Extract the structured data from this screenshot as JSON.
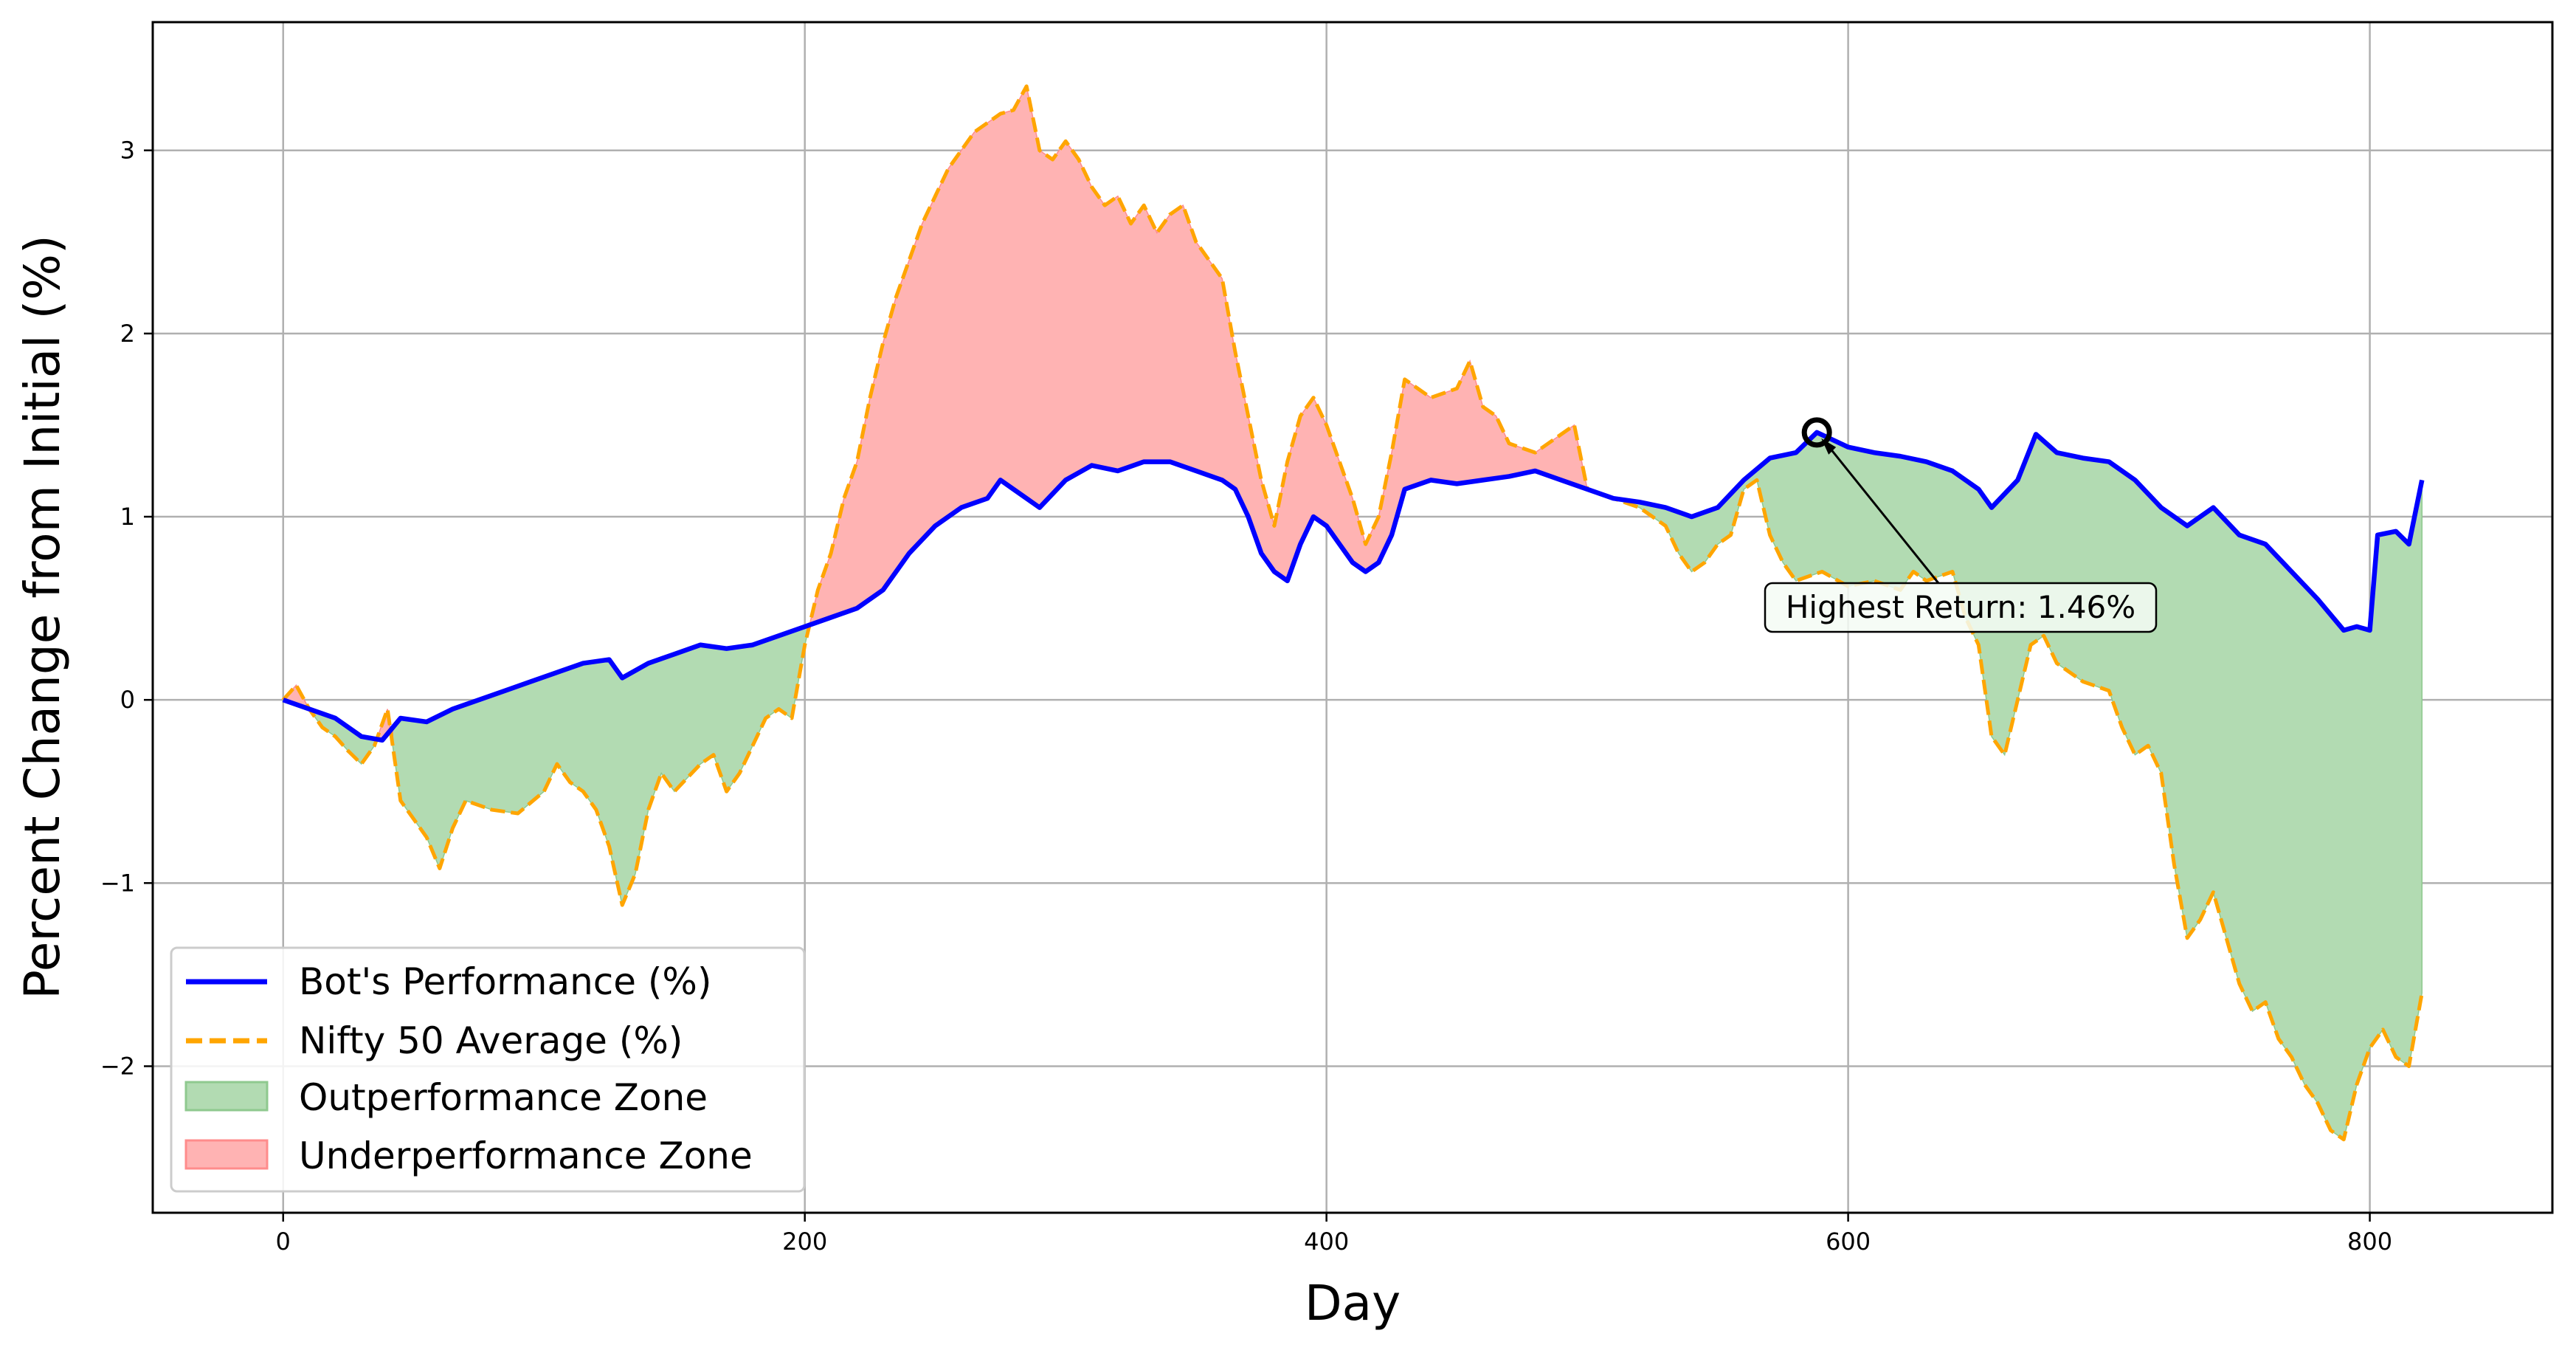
{
  "chart_data": {
    "type": "line",
    "title": "",
    "xlabel": "Day",
    "ylabel": "Percent Change from Initial (%)",
    "xlim": [
      -50,
      870
    ],
    "ylim": [
      -2.8,
      3.7
    ],
    "xticks": [
      0,
      200,
      400,
      600,
      800
    ],
    "yticks": [
      -2,
      -1,
      0,
      1,
      2,
      3
    ],
    "ytick_labels": [
      "−2",
      "−1",
      "0",
      "1",
      "2",
      "3"
    ],
    "grid": true,
    "legend_position": "lower-left",
    "series": [
      {
        "name": "Bot's Performance (%)",
        "color": "#0000ff",
        "style": "solid",
        "points": [
          [
            0,
            0
          ],
          [
            10,
            -0.05
          ],
          [
            20,
            -0.1
          ],
          [
            30,
            -0.2
          ],
          [
            38,
            -0.22
          ],
          [
            45,
            -0.1
          ],
          [
            55,
            -0.12
          ],
          [
            65,
            -0.05
          ],
          [
            75,
            0.0
          ],
          [
            85,
            0.05
          ],
          [
            95,
            0.1
          ],
          [
            105,
            0.15
          ],
          [
            115,
            0.2
          ],
          [
            125,
            0.22
          ],
          [
            130,
            0.12
          ],
          [
            140,
            0.2
          ],
          [
            150,
            0.25
          ],
          [
            160,
            0.3
          ],
          [
            170,
            0.28
          ],
          [
            180,
            0.3
          ],
          [
            190,
            0.35
          ],
          [
            200,
            0.4
          ],
          [
            210,
            0.45
          ],
          [
            220,
            0.5
          ],
          [
            230,
            0.6
          ],
          [
            240,
            0.8
          ],
          [
            250,
            0.95
          ],
          [
            260,
            1.05
          ],
          [
            270,
            1.1
          ],
          [
            275,
            1.2
          ],
          [
            280,
            1.15
          ],
          [
            290,
            1.05
          ],
          [
            300,
            1.2
          ],
          [
            310,
            1.28
          ],
          [
            320,
            1.25
          ],
          [
            330,
            1.3
          ],
          [
            340,
            1.3
          ],
          [
            350,
            1.25
          ],
          [
            360,
            1.2
          ],
          [
            365,
            1.15
          ],
          [
            370,
            1.0
          ],
          [
            375,
            0.8
          ],
          [
            380,
            0.7
          ],
          [
            385,
            0.65
          ],
          [
            390,
            0.85
          ],
          [
            395,
            1.0
          ],
          [
            400,
            0.95
          ],
          [
            405,
            0.85
          ],
          [
            410,
            0.75
          ],
          [
            415,
            0.7
          ],
          [
            420,
            0.75
          ],
          [
            425,
            0.9
          ],
          [
            430,
            1.15
          ],
          [
            440,
            1.2
          ],
          [
            450,
            1.18
          ],
          [
            460,
            1.2
          ],
          [
            470,
            1.22
          ],
          [
            480,
            1.25
          ],
          [
            490,
            1.2
          ],
          [
            500,
            1.15
          ],
          [
            510,
            1.1
          ],
          [
            520,
            1.08
          ],
          [
            530,
            1.05
          ],
          [
            540,
            1.0
          ],
          [
            550,
            1.05
          ],
          [
            560,
            1.2
          ],
          [
            570,
            1.32
          ],
          [
            580,
            1.35
          ],
          [
            588,
            1.46
          ],
          [
            600,
            1.38
          ],
          [
            610,
            1.35
          ],
          [
            620,
            1.33
          ],
          [
            630,
            1.3
          ],
          [
            640,
            1.25
          ],
          [
            650,
            1.15
          ],
          [
            655,
            1.05
          ],
          [
            665,
            1.2
          ],
          [
            672,
            1.45
          ],
          [
            680,
            1.35
          ],
          [
            690,
            1.32
          ],
          [
            700,
            1.3
          ],
          [
            710,
            1.2
          ],
          [
            720,
            1.05
          ],
          [
            730,
            0.95
          ],
          [
            740,
            1.05
          ],
          [
            750,
            0.9
          ],
          [
            760,
            0.85
          ],
          [
            770,
            0.7
          ],
          [
            780,
            0.55
          ],
          [
            790,
            0.38
          ],
          [
            795,
            0.4
          ],
          [
            800,
            0.38
          ],
          [
            803,
            0.9
          ],
          [
            810,
            0.92
          ],
          [
            815,
            0.85
          ],
          [
            820,
            1.2
          ]
        ]
      },
      {
        "name": "Nifty 50 Average (%)",
        "color": "#ffa500",
        "style": "dashed",
        "points": [
          [
            0,
            0
          ],
          [
            5,
            0.08
          ],
          [
            10,
            -0.05
          ],
          [
            15,
            -0.15
          ],
          [
            20,
            -0.2
          ],
          [
            25,
            -0.28
          ],
          [
            30,
            -0.35
          ],
          [
            35,
            -0.25
          ],
          [
            40,
            -0.05
          ],
          [
            45,
            -0.55
          ],
          [
            50,
            -0.65
          ],
          [
            55,
            -0.75
          ],
          [
            60,
            -0.92
          ],
          [
            65,
            -0.7
          ],
          [
            70,
            -0.55
          ],
          [
            80,
            -0.6
          ],
          [
            90,
            -0.62
          ],
          [
            100,
            -0.5
          ],
          [
            105,
            -0.35
          ],
          [
            110,
            -0.45
          ],
          [
            115,
            -0.5
          ],
          [
            120,
            -0.6
          ],
          [
            125,
            -0.8
          ],
          [
            130,
            -1.12
          ],
          [
            135,
            -0.95
          ],
          [
            140,
            -0.6
          ],
          [
            145,
            -0.4
          ],
          [
            150,
            -0.5
          ],
          [
            160,
            -0.35
          ],
          [
            165,
            -0.3
          ],
          [
            170,
            -0.5
          ],
          [
            175,
            -0.4
          ],
          [
            180,
            -0.25
          ],
          [
            185,
            -0.1
          ],
          [
            190,
            -0.05
          ],
          [
            195,
            -0.1
          ],
          [
            200,
            0.3
          ],
          [
            205,
            0.6
          ],
          [
            210,
            0.8
          ],
          [
            215,
            1.1
          ],
          [
            220,
            1.3
          ],
          [
            225,
            1.65
          ],
          [
            230,
            1.95
          ],
          [
            235,
            2.2
          ],
          [
            240,
            2.4
          ],
          [
            245,
            2.6
          ],
          [
            250,
            2.75
          ],
          [
            255,
            2.9
          ],
          [
            260,
            3.0
          ],
          [
            265,
            3.1
          ],
          [
            270,
            3.15
          ],
          [
            275,
            3.2
          ],
          [
            280,
            3.22
          ],
          [
            285,
            3.35
          ],
          [
            290,
            3.0
          ],
          [
            295,
            2.95
          ],
          [
            300,
            3.05
          ],
          [
            305,
            2.95
          ],
          [
            310,
            2.8
          ],
          [
            315,
            2.7
          ],
          [
            320,
            2.75
          ],
          [
            325,
            2.6
          ],
          [
            330,
            2.7
          ],
          [
            335,
            2.55
          ],
          [
            340,
            2.65
          ],
          [
            345,
            2.7
          ],
          [
            350,
            2.5
          ],
          [
            355,
            2.4
          ],
          [
            360,
            2.3
          ],
          [
            365,
            1.9
          ],
          [
            370,
            1.55
          ],
          [
            375,
            1.2
          ],
          [
            380,
            0.95
          ],
          [
            385,
            1.3
          ],
          [
            390,
            1.55
          ],
          [
            395,
            1.65
          ],
          [
            400,
            1.5
          ],
          [
            405,
            1.3
          ],
          [
            410,
            1.1
          ],
          [
            415,
            0.85
          ],
          [
            420,
            1.0
          ],
          [
            425,
            1.35
          ],
          [
            430,
            1.75
          ],
          [
            435,
            1.7
          ],
          [
            440,
            1.65
          ],
          [
            450,
            1.7
          ],
          [
            455,
            1.85
          ],
          [
            460,
            1.6
          ],
          [
            465,
            1.55
          ],
          [
            470,
            1.4
          ],
          [
            480,
            1.35
          ],
          [
            490,
            1.45
          ],
          [
            495,
            1.5
          ],
          [
            500,
            1.15
          ],
          [
            510,
            1.1
          ],
          [
            520,
            1.05
          ],
          [
            530,
            0.95
          ],
          [
            535,
            0.8
          ],
          [
            540,
            0.7
          ],
          [
            545,
            0.75
          ],
          [
            550,
            0.85
          ],
          [
            555,
            0.9
          ],
          [
            560,
            1.15
          ],
          [
            565,
            1.2
          ],
          [
            570,
            0.9
          ],
          [
            575,
            0.75
          ],
          [
            580,
            0.65
          ],
          [
            590,
            0.7
          ],
          [
            600,
            0.62
          ],
          [
            610,
            0.65
          ],
          [
            620,
            0.6
          ],
          [
            625,
            0.7
          ],
          [
            630,
            0.65
          ],
          [
            640,
            0.7
          ],
          [
            645,
            0.45
          ],
          [
            650,
            0.3
          ],
          [
            655,
            -0.2
          ],
          [
            660,
            -0.3
          ],
          [
            665,
            0.0
          ],
          [
            670,
            0.3
          ],
          [
            675,
            0.35
          ],
          [
            680,
            0.2
          ],
          [
            685,
            0.15
          ],
          [
            690,
            0.1
          ],
          [
            700,
            0.05
          ],
          [
            705,
            -0.15
          ],
          [
            710,
            -0.3
          ],
          [
            715,
            -0.25
          ],
          [
            720,
            -0.4
          ],
          [
            725,
            -0.9
          ],
          [
            730,
            -1.3
          ],
          [
            735,
            -1.2
          ],
          [
            740,
            -1.05
          ],
          [
            745,
            -1.3
          ],
          [
            750,
            -1.55
          ],
          [
            755,
            -1.7
          ],
          [
            760,
            -1.65
          ],
          [
            765,
            -1.85
          ],
          [
            770,
            -1.95
          ],
          [
            775,
            -2.1
          ],
          [
            780,
            -2.2
          ],
          [
            785,
            -2.35
          ],
          [
            790,
            -2.4
          ],
          [
            795,
            -2.1
          ],
          [
            800,
            -1.9
          ],
          [
            805,
            -1.8
          ],
          [
            810,
            -1.95
          ],
          [
            815,
            -2.0
          ],
          [
            820,
            -1.6
          ]
        ]
      }
    ],
    "fills": [
      {
        "name": "Outperformance Zone",
        "color": "#b2dbb2",
        "edge": "#8fc98f"
      },
      {
        "name": "Underperformance Zone",
        "color": "#ffb3b3",
        "edge": "#ff8c8c"
      }
    ],
    "annotation": {
      "text": "Highest Return: 1.46%",
      "x": 588,
      "y": 1.46
    }
  }
}
